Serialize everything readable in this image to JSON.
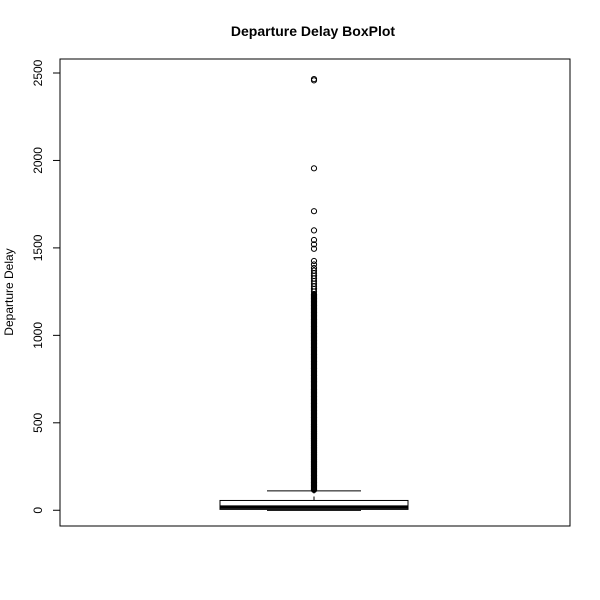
{
  "chart_data": {
    "type": "boxplot",
    "title": "Departure Delay BoxPlot",
    "xlabel": "",
    "ylabel": "Departure Delay",
    "ylim": [
      -90,
      2580
    ],
    "yticks": [
      0,
      500,
      1000,
      1500,
      2000,
      2500
    ],
    "ytick_labels": [
      "0",
      "500",
      "1000",
      "1500",
      "2000",
      "2500"
    ],
    "grid": false,
    "legend": "none",
    "box": {
      "min": -1,
      "q1": 5,
      "median": 18,
      "q3": 56,
      "whisker_high": 111
    },
    "outliers": [
      2465,
      2458,
      1955,
      1710,
      1600,
      1545,
      1520,
      1495,
      1425,
      1405,
      1385,
      1370,
      1355,
      1340,
      1325,
      1310,
      1295,
      1280,
      1265,
      1250,
      1235
    ]
  }
}
